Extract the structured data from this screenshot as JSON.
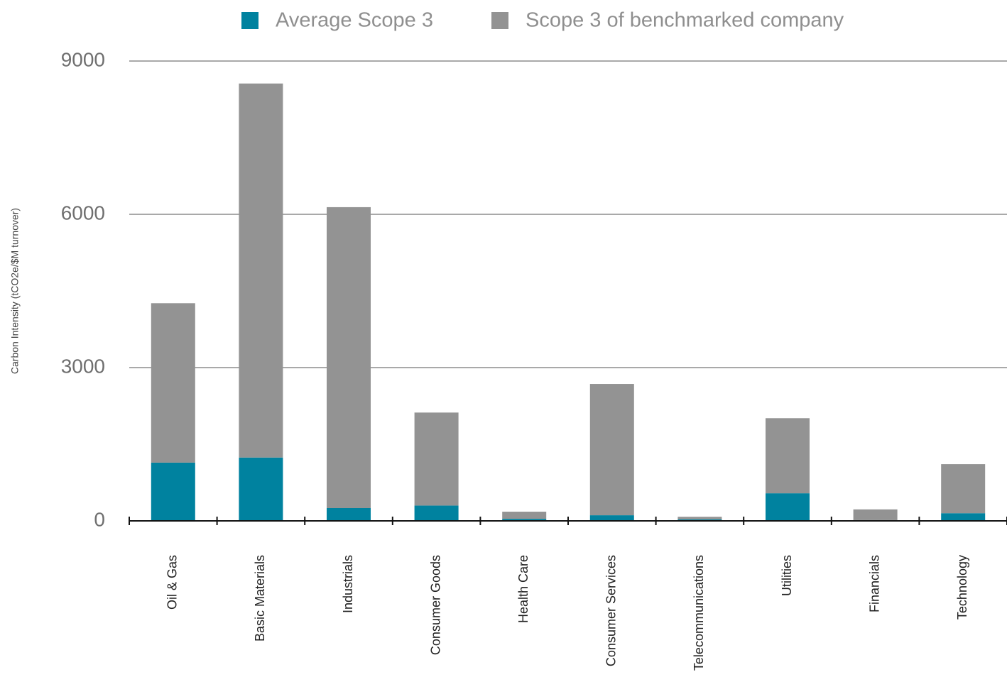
{
  "chart_data": {
    "type": "bar",
    "stacked": true,
    "y_label": "Carbon Intensity (tCO2e/$M turnover)",
    "categories": [
      "Oil & Gas",
      "Basic Materials",
      "Industrials",
      "Consumer Goods",
      "Health Care",
      "Consumer Services",
      "Telecommunications",
      "Utilities",
      "Financials",
      "Technology"
    ],
    "series": [
      {
        "name": "Average Scope 3",
        "color": "#00829f",
        "values": [
          1140,
          1240,
          250,
          300,
          40,
          110,
          30,
          540,
          15,
          150
        ]
      },
      {
        "name": "Scope 3 of benchmarked company",
        "color": "#939393",
        "values": [
          3120,
          7320,
          5890,
          1820,
          140,
          2570,
          50,
          1470,
          210,
          960
        ]
      }
    ],
    "ylim": [
      0,
      9000
    ],
    "yticks": [
      0,
      3000,
      6000,
      9000
    ],
    "grid": true,
    "legend": "top"
  }
}
